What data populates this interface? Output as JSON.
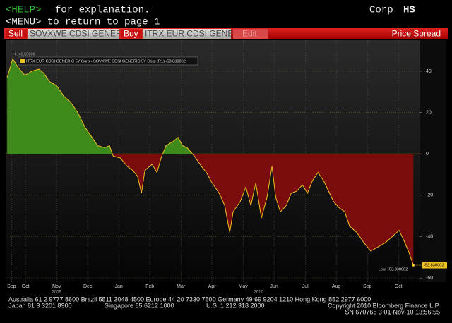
{
  "header": {
    "help_key": "<HELP>",
    "help_text": "for explanation.",
    "menu_line": "<MENU> to return to page 1",
    "sector": "Corp",
    "function": "HS"
  },
  "toolbar": {
    "sell": "Sell",
    "sell_security": "SOVXWE CDSI GENERI",
    "buy": "Buy",
    "buy_security": "ITRX EUR CDSI GENE",
    "edit": "Edit",
    "mode": "Price Spread"
  },
  "chart_data": {
    "type": "area",
    "legend": "ITRX EUR CDSI GENERIC 5Y Corp - SOVXWE CDSI GENERIC 5Y Corp (R1) -53.830002",
    "annotations": {
      "high": "Hi: 46.50006",
      "low": "Low: -53.830002",
      "last": "-53.830002",
      "year_2009": "2009",
      "year_2010": "2010"
    },
    "x": [
      0.41,
      0.59,
      0.75,
      0.98,
      1.2,
      1.43,
      1.59,
      1.77,
      2,
      2.23,
      2.45,
      2.68,
      2.91,
      3.14,
      3.32,
      3.55,
      3.7,
      3.82,
      4.05,
      4.27,
      4.45,
      4.61,
      4.73,
      4.84,
      5.07,
      5.23,
      5.36,
      5.52,
      5.75,
      5.91,
      6.05,
      6.2,
      6.43,
      6.66,
      6.82,
      7,
      7.23,
      7.41,
      7.57,
      7.68,
      7.91,
      8.09,
      8.25,
      8.41,
      8.59,
      8.77,
      8.93,
      9.05,
      9.2,
      9.39,
      9.55,
      9.73,
      9.91,
      10.07,
      10.23,
      10.41,
      10.59,
      10.75,
      10.91,
      11.09,
      11.27,
      11.43,
      11.66,
      11.89,
      12.11,
      12.34,
      12.57,
      12.8,
      13.02,
      13.18,
      13.32,
      13.48
    ],
    "values": [
      37,
      46,
      42,
      38,
      40,
      41,
      39,
      35,
      33,
      28,
      25,
      20,
      13,
      8,
      4,
      3,
      4,
      -1,
      -2,
      -6,
      -8,
      -11,
      -19,
      -8,
      -5,
      -9,
      -2,
      4,
      6,
      8,
      4,
      3,
      -1,
      -6,
      -9,
      -14,
      -19,
      -25,
      -38,
      -28,
      -23,
      -16,
      -25,
      -14,
      -31,
      -21,
      -6,
      -21,
      -28,
      -25,
      -19,
      -18,
      -15,
      -19,
      -13,
      -9,
      -13,
      -18,
      -23,
      -26,
      -28,
      -35,
      -38,
      -43,
      -47,
      -45,
      -43,
      -40,
      -37,
      -42,
      -47,
      -53.830002
    ],
    "line_color": "#f0c020",
    "positive_color": "#3f8a1c",
    "negative_color": "#7a0c0c",
    "xlim": [
      0.36,
      13.7
    ],
    "xticks": [
      {
        "value": 0.55,
        "label": "Sep"
      },
      {
        "value": 1,
        "label": "Oct"
      },
      {
        "value": 2,
        "label": "Nov"
      },
      {
        "value": 3,
        "label": "Dec"
      },
      {
        "value": 4,
        "label": "Jan"
      },
      {
        "value": 5,
        "label": "Feb"
      },
      {
        "value": 6,
        "label": "Mar"
      },
      {
        "value": 7,
        "label": "Apr"
      },
      {
        "value": 8,
        "label": "May"
      },
      {
        "value": 9,
        "label": "Jun"
      },
      {
        "value": 10,
        "label": "Jul"
      },
      {
        "value": 11,
        "label": "Aug"
      },
      {
        "value": 12,
        "label": "Sep"
      },
      {
        "value": 13,
        "label": "Oct"
      }
    ],
    "ylim": [
      -62,
      55
    ],
    "yticks": [
      40,
      20,
      0,
      -20,
      -40,
      -60
    ],
    "grid": true
  },
  "footer": {
    "line1": "Australia 61 2 9777 8600 Brazil 5511 3048 4500 Europe 44 20 7330 7500 Germany 49 69 9204 1210 Hong Kong 852 2977 6000",
    "line2_japan": "Japan 81 3 3201 8900",
    "line2_singapore": "Singapore 65 6212 1000",
    "line2_us": "U.S. 1 212 318 2000",
    "line2_copyright": "Copyright 2010 Bloomberg Finance L.P.",
    "line3": "SN 670765 3 01-Nov-10 13:56:55"
  }
}
